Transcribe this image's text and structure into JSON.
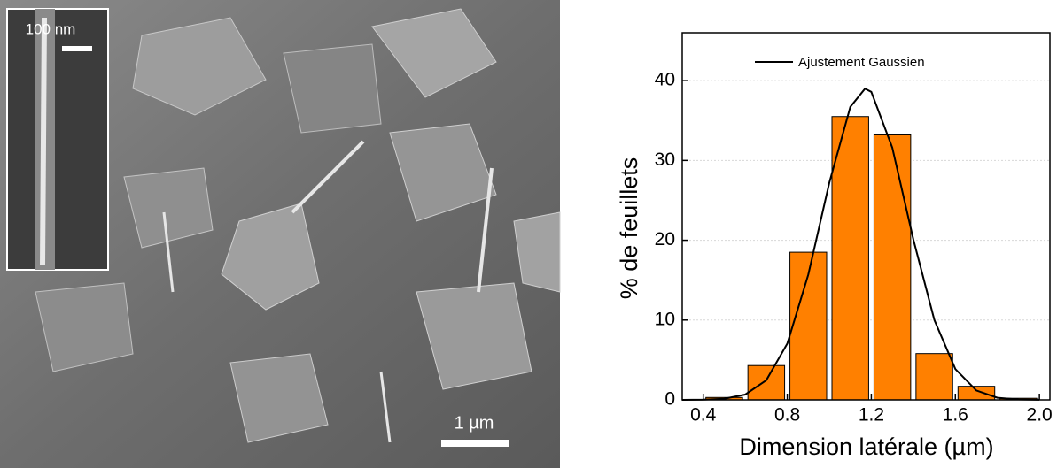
{
  "image": {
    "inset_scale": "100 nm",
    "scale": "1 µm"
  },
  "chart_data": {
    "type": "histogram",
    "xlabel": "Dimension latérale (µm)",
    "ylabel": "% de feuillets",
    "bins": [
      0.4,
      0.6,
      0.8,
      1.0,
      1.2,
      1.4,
      1.6,
      1.8,
      2.0
    ],
    "values": [
      0.3,
      4.3,
      18.5,
      35.5,
      33.2,
      5.8,
      1.7,
      0.2
    ],
    "color": "#ff8000",
    "fit": {
      "name": "Ajustement Gaussien",
      "color": "#000000",
      "x": [
        0.3,
        0.4,
        0.5,
        0.6,
        0.7,
        0.8,
        0.9,
        1.0,
        1.1,
        1.17,
        1.2,
        1.3,
        1.4,
        1.5,
        1.6,
        1.7,
        1.8,
        1.9,
        2.0
      ],
      "values": [
        0,
        0.02,
        0.14,
        0.67,
        2.46,
        7.05,
        15.7,
        27.2,
        36.7,
        39,
        38.6,
        31.6,
        20.1,
        10.0,
        3.86,
        1.17,
        0.27,
        0.05,
        0.01
      ]
    },
    "xlim": [
      0.3,
      2.05
    ],
    "ylim": [
      0,
      46
    ],
    "xticks": [
      0.4,
      0.8,
      1.2,
      1.6,
      {
        "value": 2,
        "label": "2.0"
      }
    ],
    "yticks": [
      0,
      10,
      20,
      30,
      40
    ],
    "grid": true
  }
}
